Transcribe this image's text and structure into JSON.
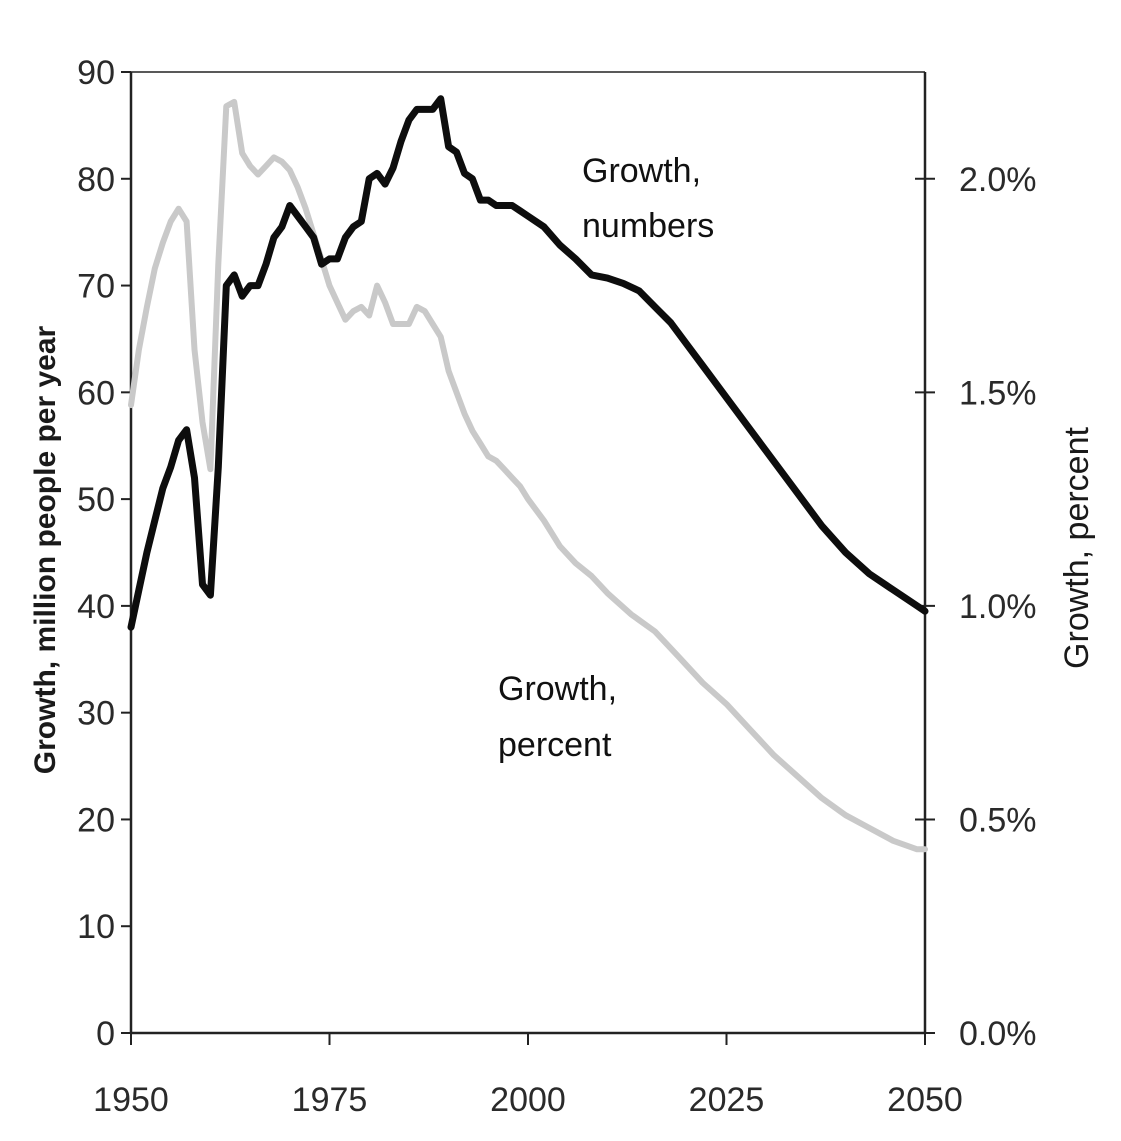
{
  "colors": {
    "numbers_line": "#0d0d0d",
    "percent_line": "#c9c9c9",
    "axis": "#222222",
    "text": "#1a1a1a"
  },
  "annotations": {
    "numbers_line1": "Growth,",
    "numbers_line2": "numbers",
    "percent_line1": "Growth,",
    "percent_line2": "percent"
  },
  "chart_data": {
    "type": "line",
    "title": "",
    "xlabel": "",
    "ylabel": "Growth, million people per year",
    "y2label": "Growth, percent",
    "xlim": [
      1950,
      2050
    ],
    "ylim": [
      0,
      90
    ],
    "y2lim": [
      0.0,
      2.25
    ],
    "xticks": [
      "1950",
      "1975",
      "2000",
      "2025",
      "2050"
    ],
    "yticks": [
      "0",
      "10",
      "20",
      "30",
      "40",
      "50",
      "60",
      "70",
      "80",
      "90"
    ],
    "y2ticks": [
      "0.0%",
      "0.5%",
      "1.0%",
      "1.5%",
      "2.0%"
    ],
    "grid": false,
    "legend": "none",
    "series": [
      {
        "name": "Growth, numbers",
        "axis": "left",
        "x": [
          1950,
          1951,
          1952,
          1953,
          1954,
          1955,
          1956,
          1957,
          1958,
          1959,
          1960,
          1961,
          1962,
          1963,
          1964,
          1965,
          1966,
          1967,
          1968,
          1969,
          1970,
          1971,
          1972,
          1973,
          1974,
          1975,
          1976,
          1977,
          1978,
          1979,
          1980,
          1981,
          1982,
          1983,
          1984,
          1985,
          1986,
          1987,
          1988,
          1989,
          1990,
          1991,
          1992,
          1993,
          1994,
          1995,
          1996,
          1997,
          1998,
          1999,
          2000,
          2002,
          2004,
          2006,
          2008,
          2010,
          2012,
          2014,
          2016,
          2018,
          2020,
          2022,
          2025,
          2028,
          2031,
          2034,
          2037,
          2040,
          2043,
          2046,
          2049,
          2050
        ],
        "values": [
          38.0,
          41.5,
          45.0,
          48.0,
          51.0,
          53.0,
          55.5,
          56.5,
          52.0,
          42.0,
          41.0,
          53.0,
          70.0,
          71.0,
          69.0,
          70.0,
          70.0,
          72.0,
          74.5,
          75.5,
          77.5,
          76.5,
          75.5,
          74.5,
          72.0,
          72.5,
          72.5,
          74.5,
          75.5,
          76.0,
          80.0,
          80.5,
          79.5,
          81.0,
          83.5,
          85.5,
          86.5,
          86.5,
          86.5,
          87.5,
          83.0,
          82.5,
          80.5,
          80.0,
          78.0,
          78.0,
          77.5,
          77.5,
          77.5,
          77.0,
          76.5,
          75.5,
          73.8,
          72.5,
          71.0,
          70.7,
          70.2,
          69.5,
          68.0,
          66.5,
          64.5,
          62.5,
          59.5,
          56.5,
          53.5,
          50.5,
          47.5,
          45.0,
          43.0,
          41.5,
          40.0,
          39.5
        ]
      },
      {
        "name": "Growth, percent",
        "axis": "right",
        "x": [
          1950,
          1951,
          1952,
          1953,
          1954,
          1955,
          1956,
          1957,
          1958,
          1959,
          1960,
          1961,
          1962,
          1963,
          1964,
          1965,
          1966,
          1967,
          1968,
          1969,
          1970,
          1971,
          1972,
          1973,
          1974,
          1975,
          1976,
          1977,
          1978,
          1979,
          1980,
          1981,
          1982,
          1983,
          1984,
          1985,
          1986,
          1987,
          1988,
          1989,
          1990,
          1991,
          1992,
          1993,
          1994,
          1995,
          1996,
          1997,
          1998,
          1999,
          2000,
          2002,
          2004,
          2006,
          2008,
          2010,
          2013,
          2016,
          2019,
          2022,
          2025,
          2028,
          2031,
          2034,
          2037,
          2040,
          2043,
          2046,
          2049,
          2050
        ],
        "values": [
          1.47,
          1.6,
          1.7,
          1.79,
          1.85,
          1.9,
          1.93,
          1.9,
          1.6,
          1.43,
          1.32,
          1.8,
          2.17,
          2.18,
          2.06,
          2.03,
          2.01,
          2.03,
          2.05,
          2.04,
          2.02,
          1.98,
          1.93,
          1.87,
          1.81,
          1.75,
          1.71,
          1.67,
          1.69,
          1.7,
          1.68,
          1.75,
          1.71,
          1.66,
          1.66,
          1.66,
          1.7,
          1.69,
          1.66,
          1.63,
          1.55,
          1.5,
          1.45,
          1.41,
          1.38,
          1.35,
          1.34,
          1.32,
          1.3,
          1.28,
          1.25,
          1.2,
          1.14,
          1.1,
          1.07,
          1.03,
          0.98,
          0.94,
          0.88,
          0.82,
          0.77,
          0.71,
          0.65,
          0.6,
          0.55,
          0.51,
          0.48,
          0.45,
          0.43,
          0.43
        ]
      }
    ]
  }
}
